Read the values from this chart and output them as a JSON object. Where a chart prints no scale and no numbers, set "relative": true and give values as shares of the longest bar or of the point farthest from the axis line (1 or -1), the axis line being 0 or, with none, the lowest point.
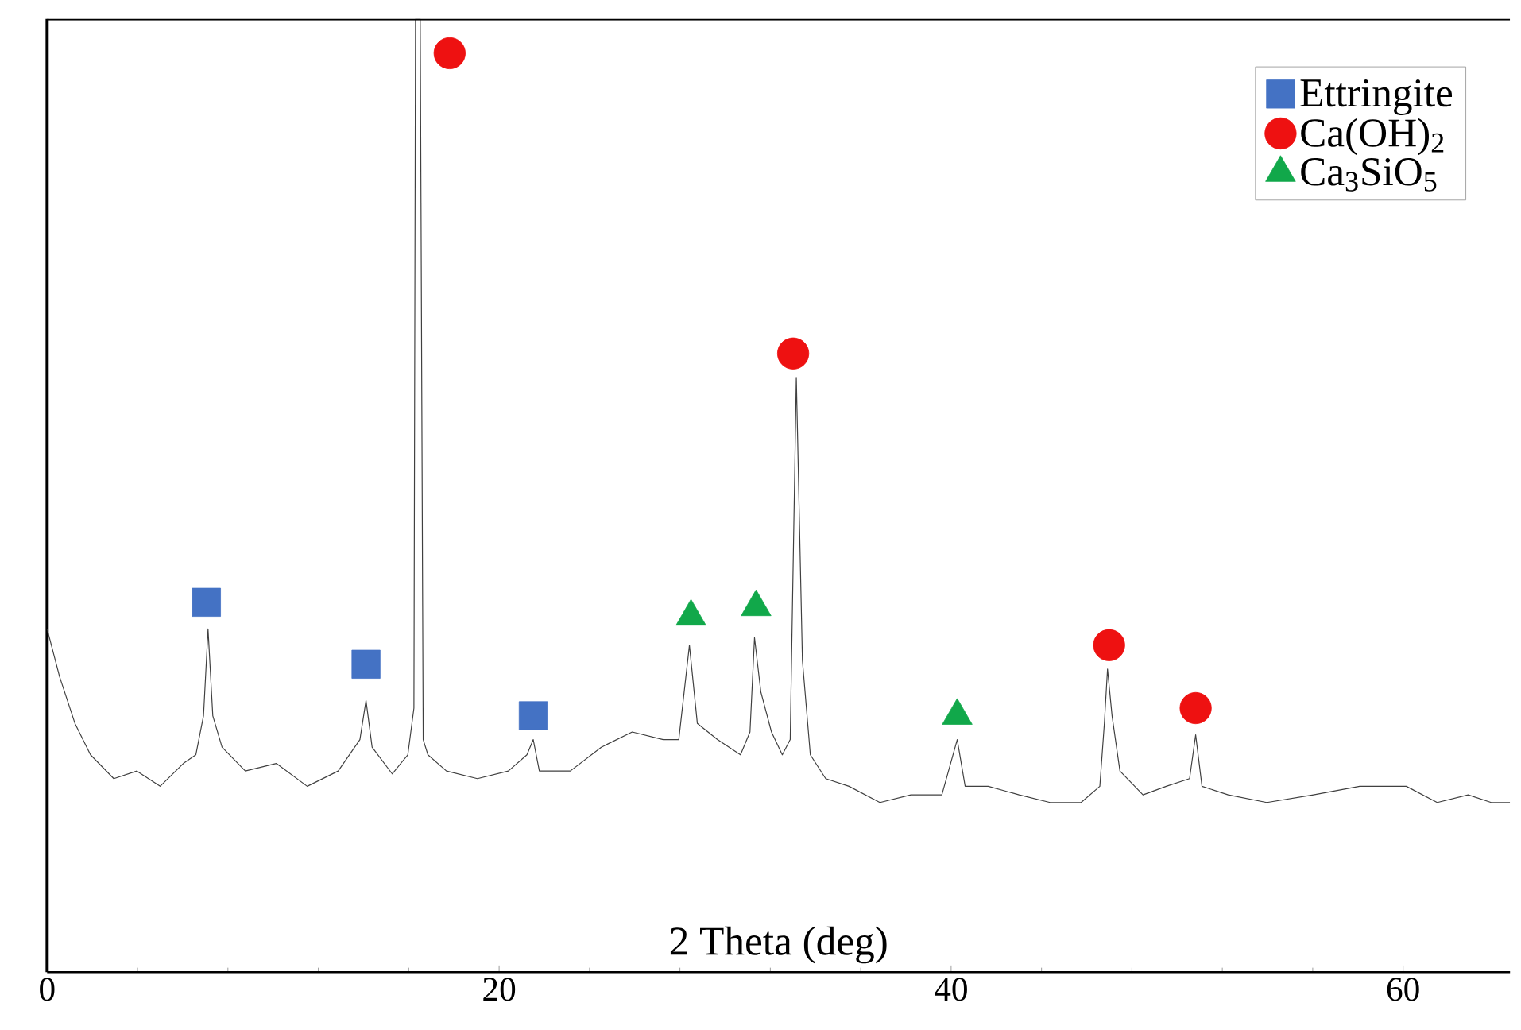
{
  "chart_data": {
    "type": "line",
    "relative": true,
    "xlabel": "2 Theta (deg)",
    "xlim": [
      0,
      64.73
    ],
    "xticks": [
      0,
      20,
      40,
      60
    ],
    "legend": "top right",
    "series": [
      {
        "color": "#404040",
        "x": [
          0,
          0.55,
          1.23,
          1.92,
          2.95,
          3.97,
          5.0,
          6.03,
          6.58,
          6.92,
          7.12,
          7.33,
          7.74,
          8.77,
          10.14,
          11.51,
          12.88,
          13.84,
          14.11,
          14.38,
          15.27,
          15.96,
          16.23,
          16.3,
          16.51,
          16.64,
          16.85,
          17.67,
          19.04,
          20.41,
          21.23,
          21.51,
          21.78,
          23.15,
          24.52,
          25.89,
          27.26,
          27.95,
          28.42,
          28.77,
          29.66,
          30.68,
          31.1,
          31.3,
          31.58,
          32.05,
          32.53,
          32.88,
          33.15,
          33.42,
          33.77,
          34.45,
          35.48,
          36.85,
          38.22,
          39.59,
          40.27,
          40.62,
          41.64,
          43.01,
          44.38,
          45.75,
          46.58,
          46.78,
          46.92,
          47.12,
          47.47,
          48.49,
          49.52,
          50.55,
          50.82,
          51.1,
          52.26,
          53.97,
          56.03,
          58.08,
          60.14,
          61.51,
          62.88,
          63.9,
          64.73
        ],
        "values": [
          0.36,
          0.31,
          0.261,
          0.228,
          0.203,
          0.211,
          0.195,
          0.219,
          0.228,
          0.269,
          0.36,
          0.269,
          0.236,
          0.211,
          0.219,
          0.195,
          0.211,
          0.244,
          0.285,
          0.236,
          0.208,
          0.228,
          0.277,
          1,
          1,
          0.244,
          0.228,
          0.211,
          0.203,
          0.211,
          0.228,
          0.244,
          0.211,
          0.211,
          0.236,
          0.252,
          0.244,
          0.244,
          0.343,
          0.261,
          0.244,
          0.228,
          0.252,
          0.351,
          0.294,
          0.252,
          0.228,
          0.244,
          0.624,
          0.327,
          0.228,
          0.203,
          0.195,
          0.178,
          0.186,
          0.186,
          0.244,
          0.195,
          0.195,
          0.186,
          0.178,
          0.178,
          0.195,
          0.261,
          0.318,
          0.269,
          0.211,
          0.186,
          0.195,
          0.203,
          0.249,
          0.195,
          0.186,
          0.178,
          0.186,
          0.195,
          0.195,
          0.178,
          0.186,
          0.178,
          0.178
        ]
      },
      {
        "type": "scatter",
        "name": "Ettringite",
        "color": "#4472c4",
        "marker": "square",
        "x": [
          7.05,
          14.11,
          21.51
        ],
        "values": [
          0.388,
          0.323,
          0.269
        ]
      },
      {
        "type": "scatter",
        "name": "Ca(OH)$_{2}$",
        "color": "#ee1111",
        "marker": "circle",
        "x": [
          17.81,
          33.01,
          46.99,
          50.82
        ],
        "values": [
          0.964,
          0.649,
          0.343,
          0.277
        ]
      },
      {
        "type": "scatter",
        "name": "Ca$_{3}$SiO$_{5}$",
        "color": "#11a84a",
        "marker": "triangle",
        "x": [
          28.49,
          31.37,
          40.27
        ],
        "values": [
          0.373,
          0.383,
          0.269
        ]
      }
    ]
  }
}
